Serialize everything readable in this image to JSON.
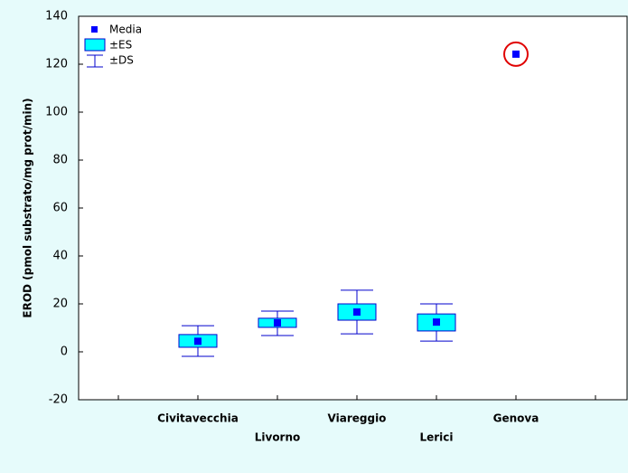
{
  "chart_data": {
    "type": "box",
    "y_label": "EROD (pmol substrato/mg prot/min)",
    "categories": [
      null,
      "Civitavecchia",
      "Livorno",
      "Viareggio",
      "Lerici",
      "Genova",
      null
    ],
    "mean": [
      null,
      4.4,
      12.1,
      16.6,
      12.4,
      124.2,
      null
    ],
    "se_low": [
      null,
      1.9,
      10.2,
      13.2,
      8.7,
      null,
      null
    ],
    "se_high": [
      null,
      7.2,
      14.0,
      20.0,
      15.8,
      null,
      null
    ],
    "sd_low": [
      null,
      -1.9,
      6.8,
      7.5,
      4.5,
      null,
      null
    ],
    "sd_high": [
      null,
      10.9,
      17.0,
      25.7,
      20.0,
      null,
      null
    ],
    "legend": {
      "mean": "Media",
      "se": "±ES",
      "sd": "±DS"
    },
    "mean_color": "#0000ff",
    "box_color": "#00ffff",
    "whisker_color": "#0000cc",
    "ylim": [
      -20,
      140
    ],
    "yticks": [
      -20,
      0,
      20,
      40,
      60,
      80,
      100,
      120,
      140
    ]
  }
}
